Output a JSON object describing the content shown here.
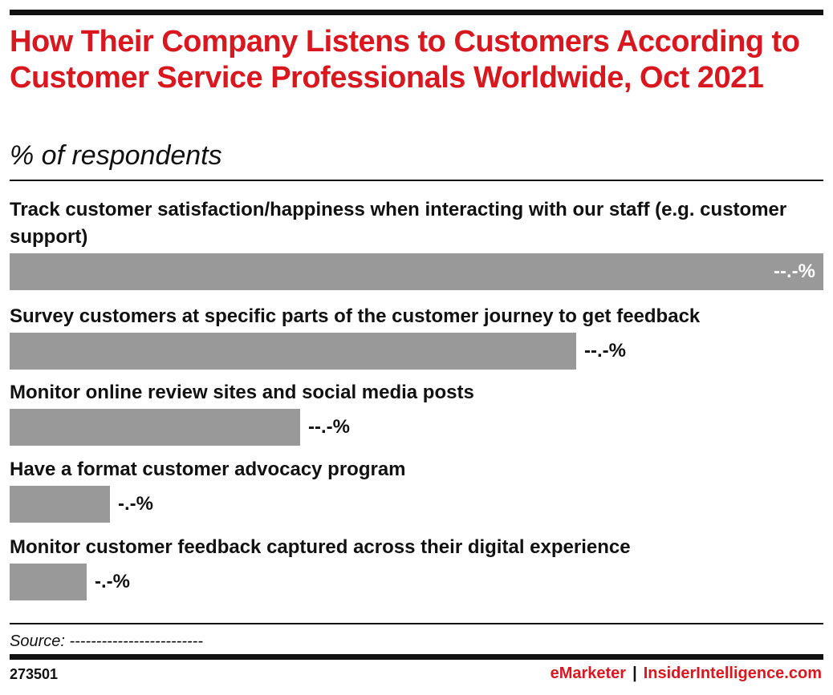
{
  "chart_data": {
    "type": "bar",
    "orientation": "horizontal",
    "title": "How Their Company Listens to Customers According to Customer Service Professionals Worldwide, Oct 2021",
    "subtitle": "% of respondents",
    "categories": [
      "Track customer satisfaction/happiness when interacting with our staff (e.g. customer support)",
      "Survey customers at specific parts of the customer journey to get feedback",
      "Monitor online review sites and social media posts",
      "Have a format customer advocacy program",
      "Monitor customer feedback captured across their digital experience"
    ],
    "values": [
      100,
      69.6,
      35.7,
      12.3,
      9.5
    ],
    "value_labels": [
      "--.-%",
      "--.-%",
      "--.-%",
      "-.-%",
      "-.-%"
    ],
    "bar_color": "#999999",
    "grid": false,
    "legend": "none"
  },
  "colors": {
    "accent": "#d8171f",
    "bar": "#999999",
    "text": "#111111"
  },
  "footer": {
    "source": "Source: -------------------------",
    "chart_id": "273501",
    "brand_left": "eMarketer",
    "brand_sep": "|",
    "brand_right": "InsiderIntelligence.com"
  }
}
